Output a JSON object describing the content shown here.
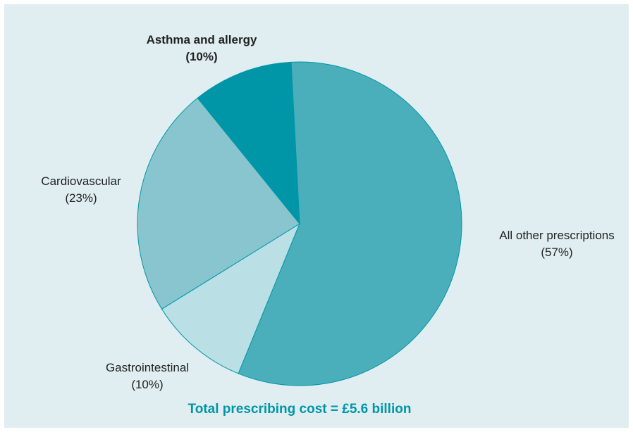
{
  "chart_data": {
    "type": "pie",
    "slices": [
      {
        "label": "All other prescriptions",
        "value_text": "(57%)",
        "value": 57,
        "color": "#4bafbb",
        "bold": false
      },
      {
        "label": "Gastrointestinal",
        "value_text": "(10%)",
        "value": 10,
        "color": "#badfe4",
        "bold": false
      },
      {
        "label": "Cardiovascular",
        "value_text": "(23%)",
        "value": 23,
        "color": "#88c5cf",
        "bold": false
      },
      {
        "label": "Asthma and allergy",
        "value_text": "(10%)",
        "value": 10,
        "color": "#0096a7",
        "bold": true
      }
    ],
    "total_text": "Total prescribing cost = £5.6 billion",
    "total_color": "#0096a7",
    "background_color": "#e0eef1",
    "edge_color": "#0096a7"
  }
}
